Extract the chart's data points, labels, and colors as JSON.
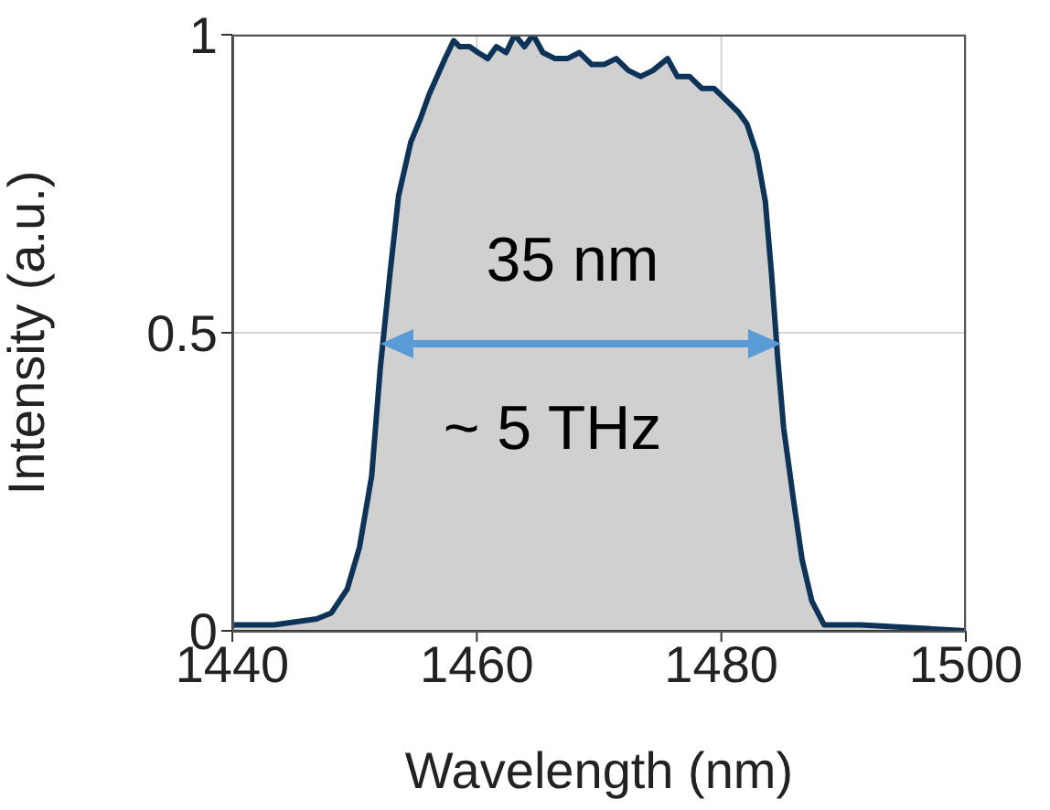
{
  "chart_data": {
    "type": "area",
    "xlabel": "Wavelength (nm)",
    "ylabel": "Intensity (a.u.)",
    "x": [
      1440,
      1443.4,
      1446.9,
      1448.1,
      1449.4,
      1450.4,
      1451.4,
      1452.1,
      1452.9,
      1453.6,
      1454.6,
      1455.4,
      1456.1,
      1457.4,
      1458.1,
      1458.6,
      1459.4,
      1460.1,
      1460.9,
      1461.6,
      1462.4,
      1463.1,
      1463.9,
      1464.6,
      1465.4,
      1466.4,
      1467.4,
      1468.4,
      1469.4,
      1470.4,
      1471.4,
      1472.4,
      1473.4,
      1474.4,
      1475.6,
      1476.4,
      1477.4,
      1478.4,
      1479.4,
      1480.4,
      1481.4,
      1482.1,
      1482.9,
      1483.6,
      1484.1,
      1484.6,
      1485.1,
      1485.9,
      1486.6,
      1487.4,
      1488.4,
      1491.4,
      1500
    ],
    "series": [
      {
        "color": "#0e3358",
        "values": [
          0.01,
          0.01,
          0.02,
          0.03,
          0.07,
          0.14,
          0.26,
          0.44,
          0.6,
          0.73,
          0.82,
          0.86,
          0.9,
          0.96,
          0.99,
          0.98,
          0.98,
          0.97,
          0.96,
          0.98,
          0.97,
          1.0,
          0.98,
          1.0,
          0.97,
          0.96,
          0.96,
          0.97,
          0.95,
          0.95,
          0.96,
          0.94,
          0.93,
          0.94,
          0.96,
          0.93,
          0.93,
          0.91,
          0.91,
          0.89,
          0.87,
          0.85,
          0.8,
          0.72,
          0.6,
          0.46,
          0.34,
          0.22,
          0.12,
          0.05,
          0.01,
          0.01,
          0.0
        ]
      }
    ],
    "xlim": [
      1440,
      1500
    ],
    "xticks": [
      1440,
      1460,
      1480,
      1500
    ],
    "ylim": [
      0,
      1
    ],
    "yticks": [
      0,
      0.5,
      1
    ],
    "grid": true,
    "annotations": [
      "35 nm",
      "~ 5 THz"
    ]
  }
}
